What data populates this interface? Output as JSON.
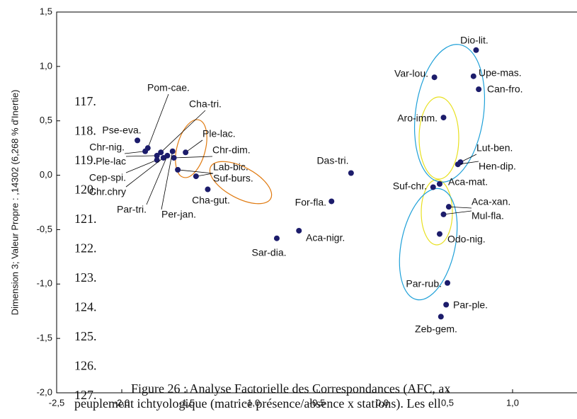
{
  "chart_data": {
    "type": "scatter",
    "y_label": "Dimension 3; Valeur Propre : ,14302 (6,268  % d'Inertie)",
    "xlim": [
      -2.5,
      1.5
    ],
    "ylim": [
      -2.0,
      1.5
    ],
    "xticks": [
      {
        "value": -2.5,
        "label": "-2,5"
      },
      {
        "value": -2.0,
        "label": "-2,0"
      },
      {
        "value": -1.5,
        "label": "-1,5"
      },
      {
        "value": -1.0,
        "label": "-1,0"
      },
      {
        "value": -0.5,
        "label": "-0,5"
      },
      {
        "value": 0.0,
        "label": "0,0"
      },
      {
        "value": 0.5,
        "label": "0,5"
      },
      {
        "value": 1.0,
        "label": "1,0"
      }
    ],
    "yticks": [
      {
        "value": -2.0,
        "label": "-2,0"
      },
      {
        "value": -1.5,
        "label": "-1,5"
      },
      {
        "value": -1.0,
        "label": "-1,0"
      },
      {
        "value": -0.5,
        "label": "-0,5"
      },
      {
        "value": 0.0,
        "label": "0,0"
      },
      {
        "value": 0.5,
        "label": "0,5"
      },
      {
        "value": 1.0,
        "label": "1,0"
      },
      {
        "value": 1.5,
        "label": "1,5"
      }
    ],
    "color": "#1c1c6b",
    "point_labels": [
      "Dio-lit.",
      "Var-lou.",
      "Upe-mas.",
      "Can-fro.",
      "Aro-imm.",
      "Lut-ben.",
      "Hen-dip.",
      "Das-tri.",
      "Suf-chr.",
      "Aca-mat.",
      "Aca-xan.",
      "Mul-fla.",
      "Odo-nig.",
      "For-fla.",
      "Aca-nigr.",
      "Sar-dia.",
      "Par-rub.",
      "Par-ple.",
      "Zeb-gem.",
      "Pse-eva.",
      "Pom-cae.",
      "Chr-nig.",
      "Cha-tri.",
      "Ple-lac.",
      "Chr-dim.",
      "Ple-lac",
      "Cep-spi.",
      "Chr.chry",
      "Par-tri.",
      "Per-jan.",
      "Lab-bic.",
      "Suf-burs.",
      "Cha-gut."
    ],
    "x": [
      0.72,
      0.4,
      0.7,
      0.74,
      0.47,
      0.6,
      0.58,
      -0.24,
      0.39,
      0.44,
      0.51,
      0.47,
      0.44,
      -0.39,
      -0.64,
      -0.81,
      0.5,
      0.49,
      0.45,
      -1.88,
      -1.8,
      -1.82,
      -1.7,
      -1.51,
      -1.6,
      -1.73,
      -1.73,
      -1.68,
      -1.65,
      -1.61,
      -1.57,
      -1.43,
      -1.34
    ],
    "values": [
      1.15,
      0.9,
      0.91,
      0.79,
      0.53,
      0.12,
      0.1,
      0.02,
      -0.11,
      -0.08,
      -0.29,
      -0.36,
      -0.54,
      -0.24,
      -0.51,
      -0.58,
      -0.99,
      -1.19,
      -1.3,
      0.32,
      0.25,
      0.22,
      0.21,
      0.21,
      0.16,
      0.18,
      0.14,
      0.16,
      0.18,
      0.22,
      0.05,
      -0.01,
      -0.13
    ],
    "line_numbers": [
      "117.",
      "118.",
      "119.",
      "120.",
      "121.",
      "122.",
      "123.",
      "124.",
      "125.",
      "126.",
      "127."
    ],
    "caption": [
      "Figure 26 : Analyse Factorielle des Correspondances (AFC, ax",
      "peuplement ichtyologique (matrice présence/absence x stations). Les ell"
    ]
  }
}
